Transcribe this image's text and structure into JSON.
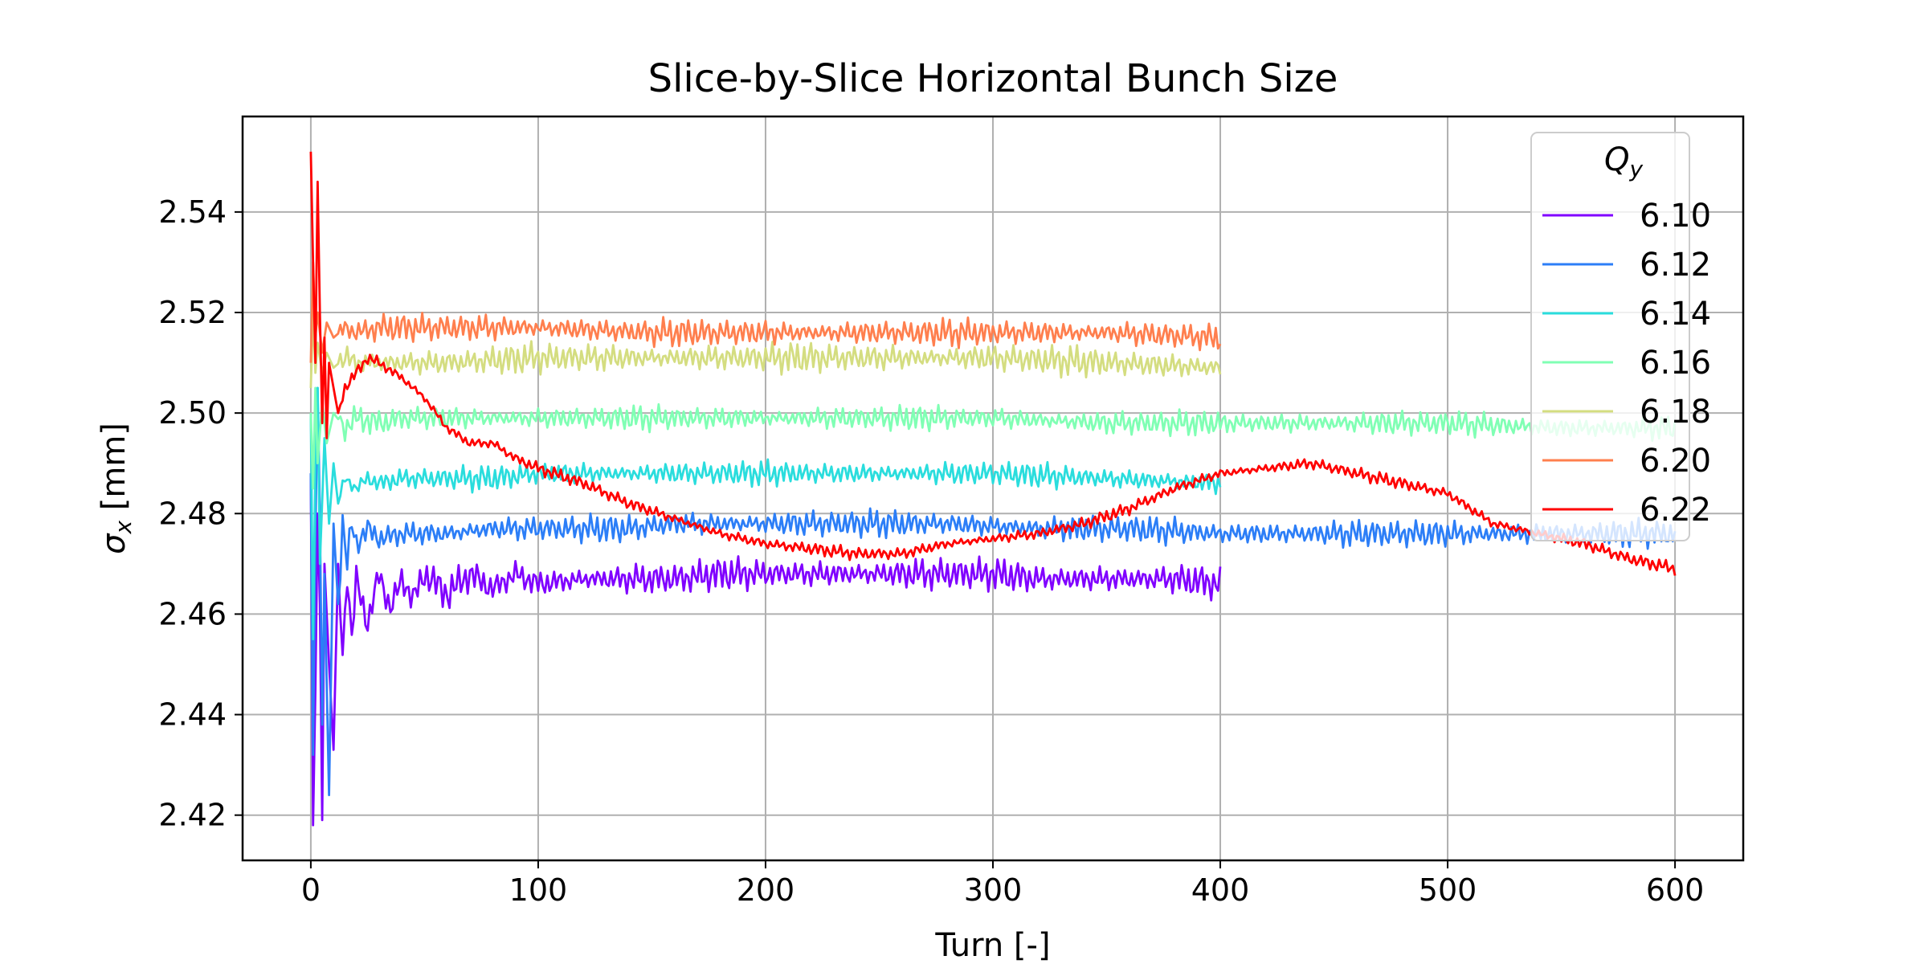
{
  "chart_data": {
    "type": "line",
    "title": "Slice-by-Slice Horizontal Bunch Size",
    "xlabel": "Turn [-]",
    "ylabel_symbol": "σ",
    "ylabel_subscript": "x",
    "ylabel_unit": " [mm]",
    "xlim": [
      -30,
      630
    ],
    "ylim": [
      2.411,
      2.559
    ],
    "xticks": [
      0,
      100,
      200,
      300,
      400,
      500,
      600
    ],
    "yticks": [
      2.42,
      2.44,
      2.46,
      2.48,
      2.5,
      2.52,
      2.54
    ],
    "xtick_labels": [
      "0",
      "100",
      "200",
      "300",
      "400",
      "500",
      "600"
    ],
    "ytick_labels": [
      "2.42",
      "2.44",
      "2.46",
      "2.48",
      "2.50",
      "2.52",
      "2.54"
    ],
    "grid": true,
    "legend": {
      "position": "top-right",
      "title_symbol": "Q",
      "title_subscript": "y"
    },
    "series": [
      {
        "name": "6.10",
        "color": "#8000ff",
        "x": [
          0,
          1,
          2,
          3,
          4,
          5,
          6,
          8,
          10,
          12,
          14,
          16,
          18,
          20,
          25,
          30,
          35,
          40,
          45,
          50,
          60,
          70,
          80,
          90,
          100,
          120,
          140,
          160,
          180,
          200,
          220,
          240,
          260,
          280,
          300,
          320,
          340,
          360,
          380,
          400
        ],
        "y": [
          2.488,
          2.418,
          2.445,
          2.48,
          2.462,
          2.419,
          2.47,
          2.45,
          2.433,
          2.47,
          2.452,
          2.468,
          2.455,
          2.467,
          2.458,
          2.468,
          2.461,
          2.467,
          2.463,
          2.468,
          2.464,
          2.468,
          2.465,
          2.468,
          2.466,
          2.467,
          2.467,
          2.467,
          2.468,
          2.468,
          2.468,
          2.468,
          2.468,
          2.468,
          2.468,
          2.467,
          2.467,
          2.467,
          2.467,
          2.466
        ],
        "osc": 1.2
      },
      {
        "name": "6.12",
        "color": "#2c7ef7",
        "x": [
          0,
          1,
          2,
          3,
          4,
          5,
          6,
          8,
          10,
          12,
          14,
          16,
          18,
          20,
          25,
          30,
          40,
          50,
          60,
          80,
          100,
          120,
          140,
          160,
          180,
          200,
          240,
          280,
          320,
          360,
          400,
          440,
          480,
          520,
          560,
          600
        ],
        "y": [
          2.488,
          2.432,
          2.475,
          2.505,
          2.48,
          2.438,
          2.468,
          2.424,
          2.478,
          2.462,
          2.478,
          2.47,
          2.478,
          2.474,
          2.477,
          2.475,
          2.476,
          2.476,
          2.476,
          2.477,
          2.477,
          2.477,
          2.477,
          2.478,
          2.478,
          2.478,
          2.478,
          2.478,
          2.477,
          2.477,
          2.476,
          2.476,
          2.476,
          2.476,
          2.476,
          2.476
        ],
        "osc": 1.0
      },
      {
        "name": "6.14",
        "color": "#2adddd",
        "x": [
          0,
          1,
          2,
          3,
          4,
          6,
          8,
          10,
          12,
          15,
          20,
          25,
          30,
          40,
          50,
          60,
          80,
          100,
          150,
          200,
          250,
          300,
          350,
          400
        ],
        "y": [
          2.5,
          2.455,
          2.49,
          2.505,
          2.47,
          2.495,
          2.478,
          2.49,
          2.482,
          2.487,
          2.485,
          2.487,
          2.486,
          2.487,
          2.487,
          2.487,
          2.487,
          2.488,
          2.488,
          2.488,
          2.488,
          2.488,
          2.487,
          2.486
        ],
        "osc": 0.9
      },
      {
        "name": "6.16",
        "color": "#80ffb4",
        "x": [
          0,
          1,
          2,
          3,
          5,
          7,
          10,
          15,
          20,
          30,
          40,
          60,
          100,
          150,
          200,
          250,
          300,
          350,
          400,
          450,
          500,
          550,
          600
        ],
        "y": [
          2.5,
          2.485,
          2.505,
          2.49,
          2.502,
          2.494,
          2.5,
          2.497,
          2.499,
          2.498,
          2.499,
          2.499,
          2.499,
          2.499,
          2.499,
          2.499,
          2.499,
          2.498,
          2.498,
          2.498,
          2.498,
          2.497,
          2.497
        ],
        "osc": 0.9
      },
      {
        "name": "6.18",
        "color": "#d4dd80",
        "x": [
          0,
          1,
          2,
          3,
          5,
          7,
          10,
          15,
          20,
          30,
          40,
          60,
          100,
          150,
          200,
          250,
          300,
          350,
          400
        ],
        "y": [
          2.505,
          2.52,
          2.508,
          2.514,
          2.508,
          2.512,
          2.509,
          2.511,
          2.51,
          2.51,
          2.51,
          2.51,
          2.511,
          2.511,
          2.511,
          2.511,
          2.511,
          2.51,
          2.509
        ],
        "osc": 1.1
      },
      {
        "name": "6.20",
        "color": "#ff7f4e",
        "x": [
          0,
          1,
          2,
          3,
          5,
          7,
          10,
          15,
          20,
          30,
          40,
          60,
          100,
          150,
          200,
          250,
          300,
          350,
          400
        ],
        "y": [
          2.51,
          2.53,
          2.515,
          2.52,
          2.512,
          2.518,
          2.515,
          2.517,
          2.516,
          2.517,
          2.517,
          2.517,
          2.517,
          2.516,
          2.516,
          2.516,
          2.516,
          2.516,
          2.515
        ],
        "osc": 1.0
      },
      {
        "name": "6.22",
        "color": "#ff0000",
        "x": [
          0,
          1,
          2,
          3,
          4,
          5,
          6,
          7,
          8,
          10,
          12,
          15,
          20,
          25,
          30,
          40,
          50,
          60,
          70,
          80,
          90,
          100,
          120,
          140,
          160,
          180,
          200,
          220,
          240,
          260,
          280,
          300,
          320,
          340,
          360,
          380,
          400,
          420,
          440,
          460,
          480,
          500,
          520,
          540,
          560,
          580,
          600
        ],
        "y": [
          2.552,
          2.53,
          2.51,
          2.546,
          2.52,
          2.498,
          2.515,
          2.495,
          2.51,
          2.505,
          2.5,
          2.505,
          2.508,
          2.511,
          2.51,
          2.507,
          2.503,
          2.497,
          2.494,
          2.494,
          2.491,
          2.489,
          2.486,
          2.482,
          2.479,
          2.476,
          2.474,
          2.473,
          2.472,
          2.472,
          2.474,
          2.475,
          2.476,
          2.478,
          2.481,
          2.485,
          2.488,
          2.489,
          2.49,
          2.488,
          2.486,
          2.484,
          2.478,
          2.476,
          2.474,
          2.471,
          2.469
        ],
        "osc": 0.45
      }
    ]
  }
}
